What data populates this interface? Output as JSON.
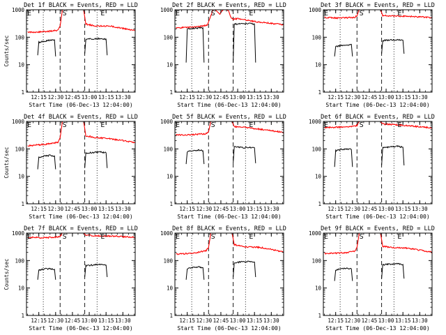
{
  "chart_data": [
    {
      "type": "line",
      "title": "Det 1f BLACK = Events, RED = LLD",
      "ylabel": "Counts/sec",
      "xlabel": "Start Time (06-Dec-13 12:04:00)",
      "xlim": [
        "12:04",
        "13:41"
      ],
      "ylim": [
        1,
        1000
      ],
      "yscale": "log",
      "yticks": [
        "1",
        "10",
        "100",
        "1000"
      ],
      "xticks": [
        "12:15",
        "12:30",
        "12:45",
        "13:00",
        "13:15",
        "13:30"
      ],
      "markers": [
        {
          "label": "E",
          "x": "12:04"
        },
        {
          "label": "S",
          "x": "12:38"
        },
        {
          "label": "E",
          "x": "13:12"
        }
      ],
      "dotted_x": [
        "12:19",
        "13:07"
      ],
      "dashed_x": [
        "12:34",
        "12:56"
      ],
      "series": [
        {
          "color": "#ff0000",
          "x": [
            "12:05",
            "12:15",
            "12:25",
            "12:32",
            "12:34",
            "12:36",
            "12:55",
            "12:57",
            "13:05",
            "13:20",
            "13:30",
            "13:38",
            "13:41"
          ],
          "y": [
            150,
            155,
            165,
            180,
            250,
            1000,
            1000,
            300,
            260,
            250,
            210,
            180,
            175
          ]
        },
        {
          "color": "#000000",
          "x": [
            "12:14",
            "12:15",
            "12:20",
            "12:25",
            "12:29",
            "12:30"
          ],
          "y": [
            22,
            65,
            72,
            78,
            80,
            20
          ]
        },
        {
          "color": "#000000",
          "x": [
            "12:56",
            "12:57",
            "13:05",
            "13:10",
            "13:15",
            "13:16"
          ],
          "y": [
            25,
            85,
            88,
            90,
            85,
            22
          ]
        }
      ]
    },
    {
      "type": "line",
      "title": "Det 2f BLACK = Events, RED = LLD",
      "ylabel": "",
      "xlabel": "Start Time (06-Dec-13 12:04:00)",
      "xlim": [
        "12:04",
        "13:41"
      ],
      "ylim": [
        1,
        1000
      ],
      "yscale": "log",
      "yticks": [
        "1",
        "10",
        "100",
        "1000"
      ],
      "xticks": [
        "12:15",
        "12:30",
        "12:45",
        "13:00",
        "13:15",
        "13:30"
      ],
      "markers": [
        {
          "label": "E",
          "x": "12:04"
        },
        {
          "label": "S",
          "x": "12:38"
        },
        {
          "label": "E",
          "x": "13:12"
        }
      ],
      "dotted_x": [
        "12:19",
        "13:07"
      ],
      "dashed_x": [
        "12:34",
        "12:56"
      ],
      "series": [
        {
          "color": "#ff0000",
          "x": [
            "12:05",
            "12:15",
            "12:25",
            "12:33",
            "12:36",
            "12:38",
            "12:40",
            "12:44",
            "12:47",
            "12:50",
            "12:52",
            "12:54",
            "12:56",
            "13:00",
            "13:10",
            "13:20",
            "13:30",
            "13:41"
          ],
          "y": [
            220,
            225,
            240,
            280,
            600,
            1000,
            1000,
            700,
            1000,
            1000,
            900,
            500,
            450,
            480,
            400,
            350,
            320,
            290
          ]
        },
        {
          "color": "#000000",
          "x": [
            "12:14",
            "12:15",
            "12:20",
            "12:25",
            "12:29",
            "12:30"
          ],
          "y": [
            12,
            200,
            210,
            215,
            220,
            12
          ]
        },
        {
          "color": "#000000",
          "x": [
            "12:56",
            "12:57",
            "13:05",
            "13:10",
            "13:15",
            "13:16"
          ],
          "y": [
            12,
            300,
            310,
            320,
            300,
            12
          ]
        }
      ]
    },
    {
      "type": "line",
      "title": "Det 3f BLACK = Events, RED = LLD",
      "ylabel": "",
      "xlabel": "Start Time (06-Dec-13 12:04:00)",
      "xlim": [
        "12:04",
        "13:41"
      ],
      "ylim": [
        1,
        1000
      ],
      "yscale": "log",
      "yticks": [
        "1",
        "10",
        "100",
        "1000"
      ],
      "xticks": [
        "12:15",
        "12:30",
        "12:45",
        "13:00",
        "13:15",
        "13:30"
      ],
      "markers": [
        {
          "label": "E",
          "x": "12:04"
        },
        {
          "label": "S",
          "x": "12:38"
        },
        {
          "label": "E",
          "x": "13:12"
        }
      ],
      "dotted_x": [
        "12:19",
        "13:07"
      ],
      "dashed_x": [
        "12:34",
        "12:56"
      ],
      "series": [
        {
          "color": "#ff0000",
          "x": [
            "12:05",
            "12:20",
            "12:32",
            "12:34",
            "12:36",
            "12:55",
            "12:57",
            "13:05",
            "13:20",
            "13:41"
          ],
          "y": [
            520,
            500,
            530,
            600,
            1000,
            1000,
            620,
            600,
            580,
            520
          ]
        },
        {
          "color": "#000000",
          "x": [
            "12:14",
            "12:15",
            "12:20",
            "12:25",
            "12:29",
            "12:30"
          ],
          "y": [
            20,
            45,
            50,
            52,
            55,
            20
          ]
        },
        {
          "color": "#000000",
          "x": [
            "12:56",
            "12:57",
            "13:05",
            "13:10",
            "13:15",
            "13:16"
          ],
          "y": [
            25,
            75,
            80,
            80,
            78,
            25
          ]
        }
      ]
    },
    {
      "type": "line",
      "title": "Det 4f BLACK = Events, RED = LLD",
      "ylabel": "Counts/sec",
      "xlabel": "Start Time (06-Dec-13 12:04:00)",
      "xlim": [
        "12:04",
        "13:41"
      ],
      "ylim": [
        1,
        1000
      ],
      "yscale": "log",
      "yticks": [
        "1",
        "10",
        "100",
        "1000"
      ],
      "xticks": [
        "12:15",
        "12:30",
        "12:45",
        "13:00",
        "13:15",
        "13:30"
      ],
      "markers": [
        {
          "label": "E",
          "x": "12:04"
        },
        {
          "label": "S",
          "x": "12:38"
        },
        {
          "label": "E",
          "x": "13:12"
        }
      ],
      "dotted_x": [
        "12:19",
        "13:07"
      ],
      "dashed_x": [
        "12:34",
        "12:56"
      ],
      "series": [
        {
          "color": "#ff0000",
          "x": [
            "12:05",
            "12:15",
            "12:25",
            "12:32",
            "12:34",
            "12:36",
            "12:55",
            "12:57",
            "13:05",
            "13:20",
            "13:30",
            "13:41"
          ],
          "y": [
            130,
            140,
            155,
            175,
            250,
            1000,
            1000,
            300,
            260,
            230,
            200,
            165
          ]
        },
        {
          "color": "#000000",
          "x": [
            "12:14",
            "12:15",
            "12:20",
            "12:25",
            "12:29",
            "12:30"
          ],
          "y": [
            18,
            50,
            55,
            58,
            55,
            18
          ]
        },
        {
          "color": "#000000",
          "x": [
            "12:56",
            "12:57",
            "13:05",
            "13:10",
            "13:15",
            "13:16"
          ],
          "y": [
            20,
            70,
            75,
            78,
            72,
            20
          ]
        }
      ]
    },
    {
      "type": "line",
      "title": "Det 5f BLACK = Events, RED = LLD",
      "ylabel": "",
      "xlabel": "Start Time (06-Dec-13 12:04:00)",
      "xlim": [
        "12:04",
        "13:41"
      ],
      "ylim": [
        1,
        1000
      ],
      "yscale": "log",
      "yticks": [
        "1",
        "10",
        "100",
        "1000"
      ],
      "xticks": [
        "12:15",
        "12:30",
        "12:45",
        "13:00",
        "13:15",
        "13:30"
      ],
      "markers": [
        {
          "label": "E",
          "x": "12:04"
        },
        {
          "label": "S",
          "x": "12:38"
        },
        {
          "label": "E",
          "x": "13:12"
        }
      ],
      "dotted_x": [
        "12:19",
        "13:07"
      ],
      "dashed_x": [
        "12:34",
        "12:56"
      ],
      "series": [
        {
          "color": "#ff0000",
          "x": [
            "12:05",
            "12:20",
            "12:32",
            "12:34",
            "12:36",
            "12:55",
            "12:57",
            "13:05",
            "13:20",
            "13:41"
          ],
          "y": [
            320,
            330,
            360,
            420,
            1000,
            1000,
            650,
            620,
            520,
            400
          ]
        },
        {
          "color": "#000000",
          "x": [
            "12:14",
            "12:15",
            "12:20",
            "12:25",
            "12:29",
            "12:30"
          ],
          "y": [
            28,
            80,
            88,
            90,
            85,
            28
          ]
        },
        {
          "color": "#000000",
          "x": [
            "12:56",
            "12:57",
            "13:05",
            "13:10",
            "13:15",
            "13:16"
          ],
          "y": [
            30,
            120,
            110,
            115,
            110,
            30
          ]
        }
      ]
    },
    {
      "type": "line",
      "title": "Det 6f BLACK = Events, RED = LLD",
      "ylabel": "",
      "xlabel": "Start Time (06-Dec-13 12:04:00)",
      "xlim": [
        "12:04",
        "13:41"
      ],
      "ylim": [
        1,
        1000
      ],
      "yscale": "log",
      "yticks": [
        "1",
        "10",
        "100",
        "1000"
      ],
      "xticks": [
        "12:15",
        "12:30",
        "12:45",
        "13:00",
        "13:15",
        "13:30"
      ],
      "markers": [
        {
          "label": "E",
          "x": "12:04"
        },
        {
          "label": "S",
          "x": "12:38"
        },
        {
          "label": "E",
          "x": "13:12"
        }
      ],
      "dotted_x": [
        "12:19",
        "13:07"
      ],
      "dashed_x": [
        "12:34",
        "12:56"
      ],
      "series": [
        {
          "color": "#ff0000",
          "x": [
            "12:05",
            "12:20",
            "12:32",
            "12:34",
            "12:36",
            "12:55",
            "12:57",
            "13:05",
            "13:20",
            "13:41"
          ],
          "y": [
            600,
            620,
            680,
            720,
            1000,
            1000,
            800,
            780,
            700,
            580
          ]
        },
        {
          "color": "#000000",
          "x": [
            "12:14",
            "12:15",
            "12:20",
            "12:25",
            "12:29",
            "12:30"
          ],
          "y": [
            22,
            85,
            95,
            100,
            95,
            22
          ]
        },
        {
          "color": "#000000",
          "x": [
            "12:56",
            "12:57",
            "13:05",
            "13:10",
            "13:15",
            "13:16"
          ],
          "y": [
            25,
            110,
            120,
            125,
            115,
            25
          ]
        }
      ]
    },
    {
      "type": "line",
      "title": "Det 7f BLACK = Events, RED = LLD",
      "ylabel": "Counts/sec",
      "xlabel": "Start Time (06-Dec-13 12:04:00)",
      "xlim": [
        "12:04",
        "13:41"
      ],
      "ylim": [
        1,
        1000
      ],
      "yscale": "log",
      "yticks": [
        "1",
        "10",
        "100",
        "1000"
      ],
      "xticks": [
        "12:15",
        "12:30",
        "12:45",
        "13:00",
        "13:15",
        "13:30"
      ],
      "markers": [
        {
          "label": "E",
          "x": "12:04"
        },
        {
          "label": "S",
          "x": "12:38"
        },
        {
          "label": "E",
          "x": "13:12"
        }
      ],
      "dotted_x": [
        "12:19",
        "13:07"
      ],
      "dashed_x": [
        "12:34",
        "12:56"
      ],
      "series": [
        {
          "color": "#ff0000",
          "x": [
            "12:05",
            "12:20",
            "12:32",
            "12:34",
            "12:36",
            "12:55",
            "12:57",
            "13:05",
            "13:20",
            "13:41"
          ],
          "y": [
            700,
            680,
            720,
            760,
            1000,
            1000,
            850,
            800,
            780,
            700
          ]
        },
        {
          "color": "#000000",
          "x": [
            "12:14",
            "12:15",
            "12:20",
            "12:25",
            "12:29",
            "12:30"
          ],
          "y": [
            20,
            45,
            50,
            50,
            48,
            20
          ]
        },
        {
          "color": "#000000",
          "x": [
            "12:56",
            "12:57",
            "13:05",
            "13:10",
            "13:15",
            "13:16"
          ],
          "y": [
            25,
            65,
            70,
            72,
            68,
            25
          ]
        }
      ]
    },
    {
      "type": "line",
      "title": "Det 8f BLACK = Events, RED = LLD",
      "ylabel": "",
      "xlabel": "Start Time (06-Dec-13 12:04:00)",
      "xlim": [
        "12:04",
        "13:41"
      ],
      "ylim": [
        1,
        1000
      ],
      "yscale": "log",
      "yticks": [
        "1",
        "10",
        "100",
        "1000"
      ],
      "xticks": [
        "12:15",
        "12:30",
        "12:45",
        "13:00",
        "13:15",
        "13:30"
      ],
      "markers": [
        {
          "label": "E",
          "x": "12:04"
        },
        {
          "label": "S",
          "x": "12:38"
        },
        {
          "label": "E",
          "x": "13:12"
        }
      ],
      "dotted_x": [
        "12:19",
        "13:07"
      ],
      "dashed_x": [
        "12:34",
        "12:56"
      ],
      "series": [
        {
          "color": "#ff0000",
          "x": [
            "12:05",
            "12:15",
            "12:25",
            "12:32",
            "12:34",
            "12:36",
            "12:55",
            "12:57",
            "13:05",
            "13:20",
            "13:30",
            "13:41"
          ],
          "y": [
            170,
            180,
            200,
            230,
            300,
            1000,
            1000,
            380,
            320,
            300,
            260,
            200
          ]
        },
        {
          "color": "#000000",
          "x": [
            "12:14",
            "12:15",
            "12:20",
            "12:25",
            "12:29",
            "12:30"
          ],
          "y": [
            20,
            50,
            55,
            58,
            55,
            20
          ]
        },
        {
          "color": "#000000",
          "x": [
            "12:56",
            "12:57",
            "13:05",
            "13:10",
            "13:15",
            "13:16"
          ],
          "y": [
            25,
            85,
            90,
            92,
            88,
            25
          ]
        }
      ]
    },
    {
      "type": "line",
      "title": "Det 9f BLACK = Events, RED = LLD",
      "ylabel": "",
      "xlabel": "Start Time (06-Dec-13 12:04:00)",
      "xlim": [
        "12:04",
        "13:41"
      ],
      "ylim": [
        1,
        1000
      ],
      "yscale": "log",
      "yticks": [
        "1",
        "10",
        "100",
        "1000"
      ],
      "xticks": [
        "12:15",
        "12:30",
        "12:45",
        "13:00",
        "13:15",
        "13:30"
      ],
      "markers": [
        {
          "label": "E",
          "x": "12:04"
        },
        {
          "label": "S",
          "x": "12:38"
        },
        {
          "label": "E",
          "x": "13:12"
        }
      ],
      "dotted_x": [
        "12:19",
        "13:07"
      ],
      "dashed_x": [
        "12:34",
        "12:56"
      ],
      "series": [
        {
          "color": "#ff0000",
          "x": [
            "12:05",
            "12:15",
            "12:25",
            "12:32",
            "12:34",
            "12:36",
            "12:55",
            "12:57",
            "13:05",
            "13:20",
            "13:30",
            "13:41"
          ],
          "y": [
            180,
            185,
            195,
            220,
            300,
            1000,
            1000,
            330,
            300,
            280,
            240,
            200
          ]
        },
        {
          "color": "#000000",
          "x": [
            "12:14",
            "12:15",
            "12:20",
            "12:25",
            "12:29",
            "12:30"
          ],
          "y": [
            18,
            45,
            50,
            52,
            50,
            18
          ]
        },
        {
          "color": "#000000",
          "x": [
            "12:56",
            "12:57",
            "13:05",
            "13:10",
            "13:15",
            "13:16"
          ],
          "y": [
            22,
            70,
            75,
            78,
            72,
            22
          ]
        }
      ]
    }
  ]
}
